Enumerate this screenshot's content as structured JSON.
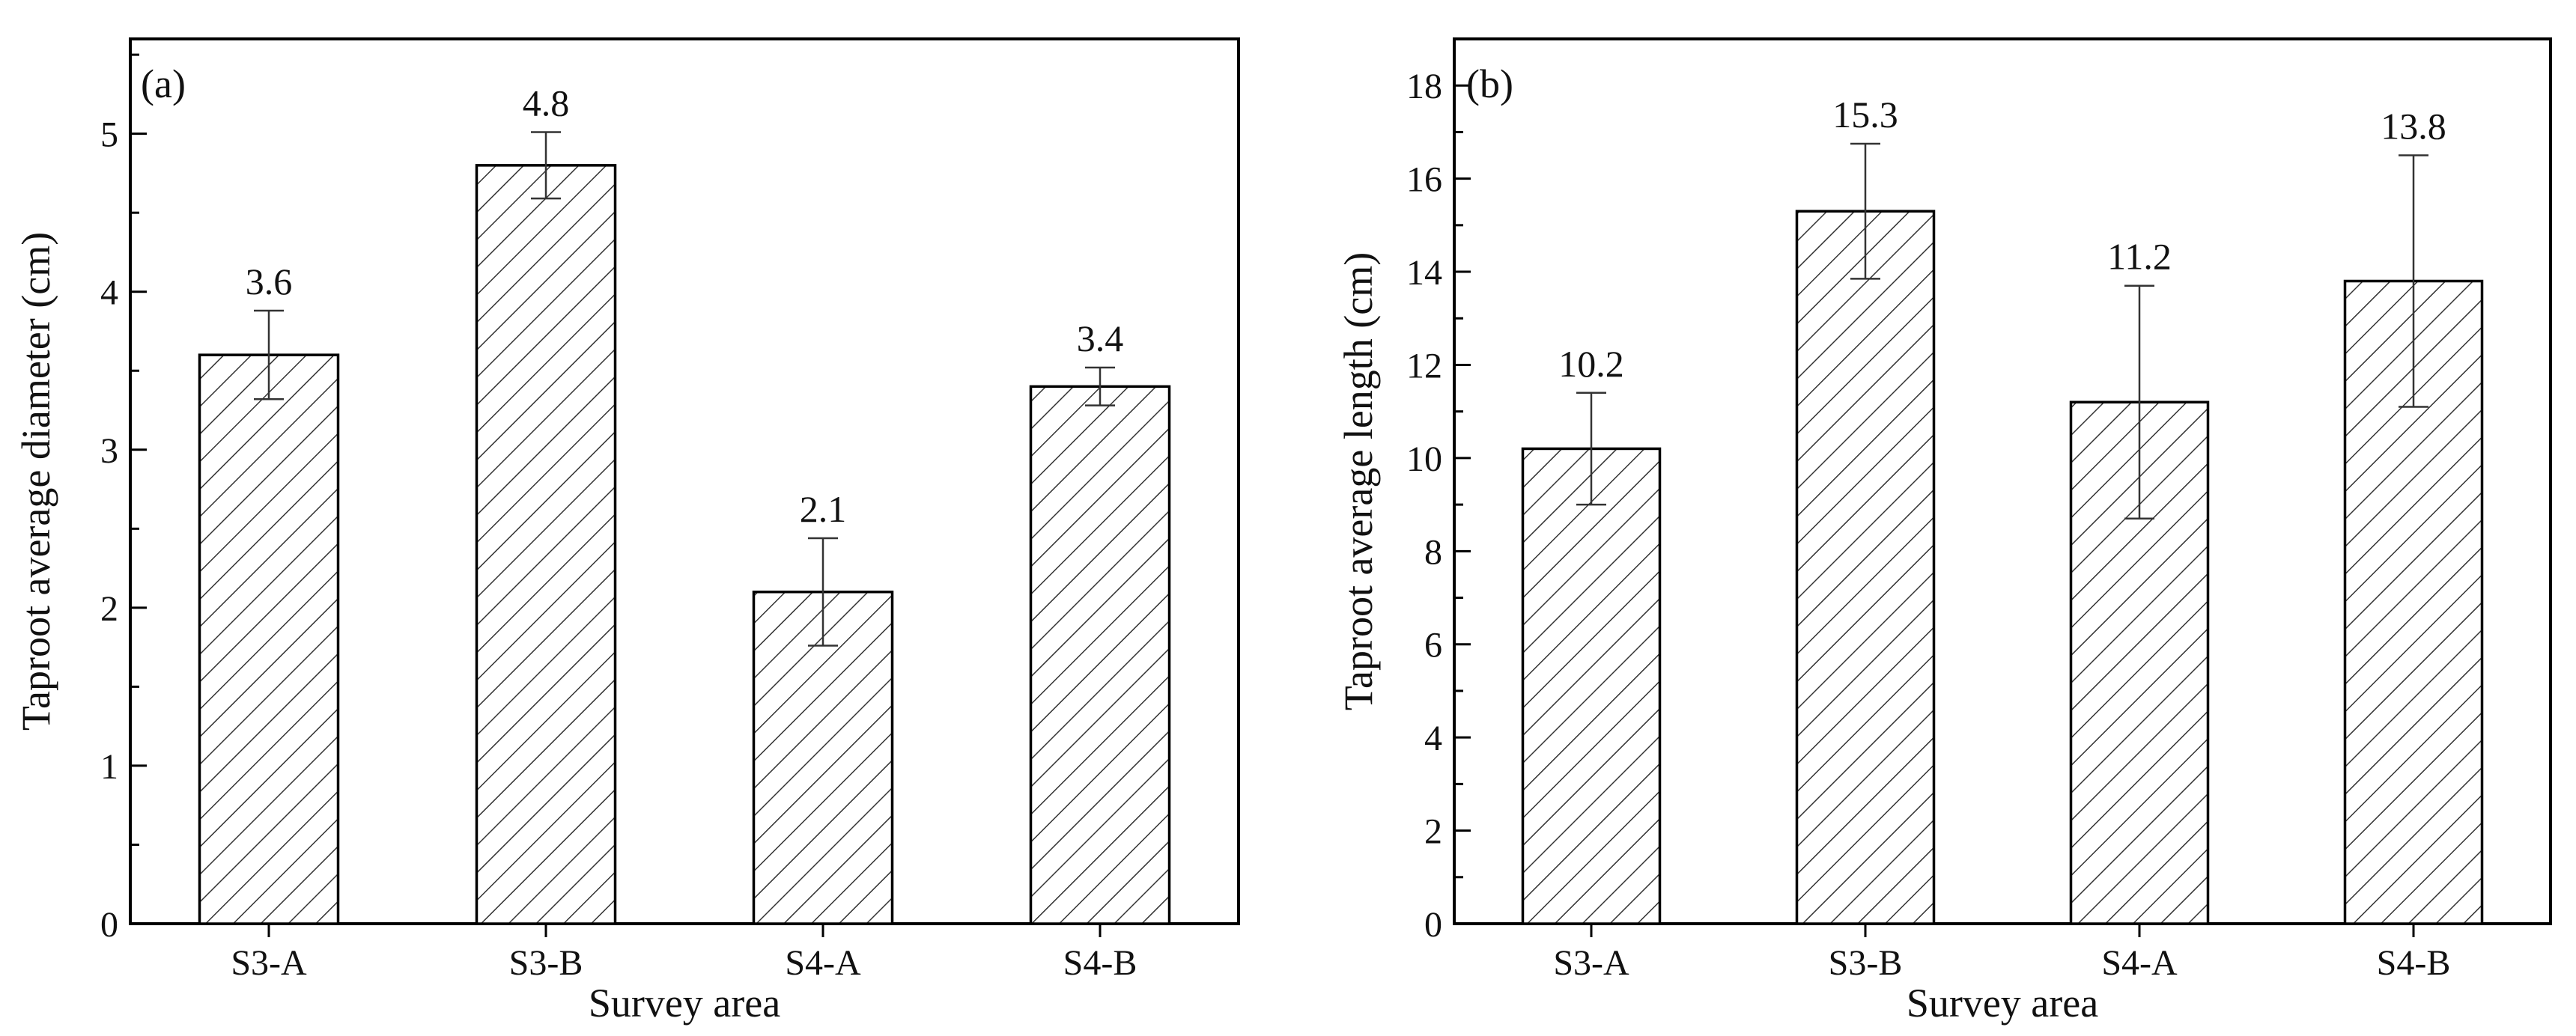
{
  "chart_data": [
    {
      "type": "bar",
      "panel_label": "(a)",
      "categories": [
        "S3-A",
        "S3-B",
        "S4-A",
        "S4-B"
      ],
      "values": [
        3.6,
        4.8,
        2.1,
        3.4
      ],
      "error": [
        0.28,
        0.21,
        0.34,
        0.12
      ],
      "data_labels": [
        "3.6",
        "4.8",
        "2.1",
        "3.4"
      ],
      "xlabel": "Survey area",
      "ylabel": "Taproot average diameter (cm)",
      "ylim": [
        0,
        5.6
      ],
      "yticks": [
        0,
        1,
        2,
        3,
        4,
        5
      ],
      "ytick_labels": [
        "0",
        "1",
        "2",
        "3",
        "4",
        "5"
      ],
      "bar_fill": "diagonal-hatch",
      "grid": false
    },
    {
      "type": "bar",
      "panel_label": "(b)",
      "categories": [
        "S3-A",
        "S3-B",
        "S4-A",
        "S4-B"
      ],
      "values": [
        10.2,
        15.3,
        11.2,
        13.8
      ],
      "error": [
        1.2,
        1.45,
        2.5,
        2.7
      ],
      "data_labels": [
        "10.2",
        "15.3",
        "11.2",
        "13.8"
      ],
      "xlabel": "Survey area",
      "ylabel": "Taproot average  length (cm)",
      "ylim": [
        0,
        19
      ],
      "yticks": [
        0,
        2,
        4,
        6,
        8,
        10,
        12,
        14,
        16,
        18
      ],
      "ytick_labels": [
        "0",
        "2",
        "4",
        "6",
        "8",
        "10",
        "12",
        "14",
        "16",
        "18"
      ],
      "bar_fill": "diagonal-hatch",
      "grid": false
    }
  ]
}
